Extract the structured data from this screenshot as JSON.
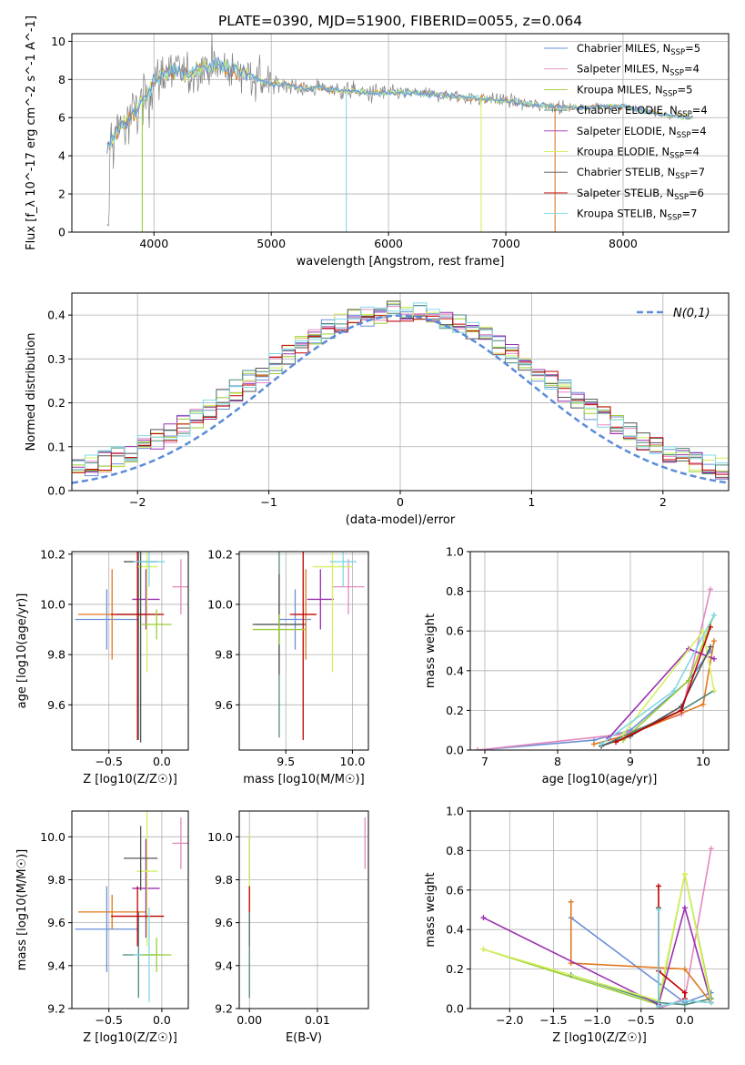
{
  "figure": {
    "title": "PLATE=0390, MJD=51900, FIBERID=0055, z=0.064"
  },
  "colors": {
    "Chabrier MILES": "#6a8fd8",
    "Salpeter MILES": "#e589c0",
    "Kroupa MILES": "#9acd32",
    "Chabrier ELODIE": "#4a8a7a",
    "Salpeter ELODIE": "#9b30b0",
    "Kroupa ELODIE": "#d4f060",
    "Chabrier STELIB": "#555555",
    "Salpeter STELIB": "#c00000",
    "Kroupa STELIB": "#80d8e8",
    "orange": "#e07820",
    "normal_curve": "#5b8bd9",
    "data_gray": "#808080"
  },
  "chart_data": [
    {
      "id": "spectrum",
      "type": "line",
      "xlabel": "wavelength [Angstrom, rest frame]",
      "ylabel": "Flux [f_λ 10^-17 erg cm^-2 s^-1 A^-1]",
      "xlim": [
        3300,
        8900
      ],
      "ylim": [
        0,
        10.4
      ],
      "xticks": [
        4000,
        5000,
        6000,
        7000,
        8000
      ],
      "yticks": [
        0,
        2,
        4,
        6,
        8,
        10
      ],
      "legend_position": "top-right",
      "legend": [
        {
          "name": "Chabrier MILES",
          "nssp": "5"
        },
        {
          "name": "Salpeter MILES",
          "nssp": "4"
        },
        {
          "name": "Kroupa MILES",
          "nssp": "5"
        },
        {
          "name": "Chabrier ELODIE",
          "nssp": "4"
        },
        {
          "name": "Salpeter ELODIE",
          "nssp": "4"
        },
        {
          "name": "Kroupa ELODIE",
          "nssp": "4"
        },
        {
          "name": "Chabrier STELIB",
          "nssp": "7"
        },
        {
          "name": "Salpeter STELIB",
          "nssp": "6"
        },
        {
          "name": "Kroupa STELIB",
          "nssp": "7"
        }
      ],
      "continuum": [
        [
          3600,
          4.5
        ],
        [
          3700,
          5.4
        ],
        [
          3800,
          6.0
        ],
        [
          3900,
          6.8
        ],
        [
          4000,
          7.9
        ],
        [
          4100,
          8.3
        ],
        [
          4200,
          8.5
        ],
        [
          4300,
          8.2
        ],
        [
          4400,
          8.6
        ],
        [
          4500,
          8.7
        ],
        [
          4600,
          8.6
        ],
        [
          4700,
          8.5
        ],
        [
          4800,
          8.3
        ],
        [
          4900,
          8.0
        ],
        [
          5000,
          7.7
        ],
        [
          5100,
          7.8
        ],
        [
          5200,
          7.6
        ],
        [
          5300,
          7.5
        ],
        [
          5400,
          7.6
        ],
        [
          5500,
          7.5
        ],
        [
          5600,
          7.4
        ],
        [
          5700,
          7.4
        ],
        [
          5800,
          7.3
        ],
        [
          5900,
          7.3
        ],
        [
          6000,
          7.3
        ],
        [
          6200,
          7.3
        ],
        [
          6400,
          7.2
        ],
        [
          6600,
          7.1
        ],
        [
          6800,
          7.0
        ],
        [
          7000,
          6.9
        ],
        [
          7200,
          6.7
        ],
        [
          7400,
          6.6
        ],
        [
          7600,
          6.5
        ],
        [
          7800,
          6.6
        ],
        [
          8000,
          6.6
        ],
        [
          8200,
          6.3
        ],
        [
          8400,
          6.1
        ],
        [
          8600,
          6.0
        ]
      ]
    },
    {
      "id": "residuals",
      "type": "line",
      "xlabel": "(data-model)/error",
      "ylabel": "Normed distribution",
      "xlim": [
        -2.5,
        2.5
      ],
      "ylim": [
        0,
        0.45
      ],
      "xticks": [
        -2,
        -1,
        0,
        1,
        2
      ],
      "yticks": [
        0.0,
        0.1,
        0.2,
        0.3,
        0.4
      ],
      "legend_position": "top-right",
      "legend_label": "N(0,1)",
      "bin_width": 0.1,
      "normal": {
        "mean": 0,
        "std": 1
      }
    },
    {
      "id": "age-vs-Z",
      "type": "scatter",
      "xlabel": "Z [log10(Z/Z☉)]",
      "ylabel": "age [log10(age/yr)]",
      "xlim": [
        -0.85,
        0.25
      ],
      "ylim": [
        9.42,
        10.21
      ],
      "xticks": [
        -0.5,
        0.0
      ],
      "yticks": [
        9.6,
        9.8,
        10.0,
        10.2
      ],
      "points": [
        {
          "model": "Chabrier MILES",
          "x": -0.52,
          "xerr": 0.3,
          "y": 9.94,
          "yerr": 0.12
        },
        {
          "model": "orange",
          "x": -0.47,
          "xerr": 0.32,
          "y": 9.96,
          "yerr": 0.18
        },
        {
          "model": "Salpeter MILES",
          "x": 0.18,
          "xerr": 0.08,
          "y": 10.07,
          "yerr": 0.11
        },
        {
          "model": "Chabrier ELODIE",
          "x": -0.22,
          "xerr": 0.2,
          "y": 9.96,
          "yerr": 0.5
        },
        {
          "model": "Salpeter ELODIE",
          "x": -0.15,
          "xerr": 0.13,
          "y": 10.02,
          "yerr": 0.12
        },
        {
          "model": "Kroupa ELODIE",
          "x": -0.14,
          "xerr": 0.1,
          "y": 10.15,
          "yerr": 0.42
        },
        {
          "model": "Chabrier STELIB",
          "x": -0.2,
          "xerr": 0.16,
          "y": 10.17,
          "yerr": 0.72
        },
        {
          "model": "Salpeter STELIB",
          "x": -0.23,
          "xerr": 0.25,
          "y": 9.96,
          "yerr": 0.5
        },
        {
          "model": "Kroupa STELIB",
          "x": -0.12,
          "xerr": 0.15,
          "y": 10.17,
          "yerr": 0.1
        },
        {
          "model": "Kroupa MILES",
          "x": -0.05,
          "xerr": 0.14,
          "y": 9.92,
          "yerr": 0.06
        }
      ]
    },
    {
      "id": "age-vs-mass",
      "type": "scatter",
      "xlabel": "mass [log10(M/M☉)]",
      "ylabel": "",
      "xlim": [
        9.15,
        10.12
      ],
      "ylim": [
        9.42,
        10.21
      ],
      "xticks": [
        9.5,
        10.0
      ],
      "yticks": [
        9.6,
        9.8,
        10.0,
        10.2
      ],
      "points": [
        {
          "model": "Chabrier MILES",
          "x": 9.57,
          "xerr": 0.12,
          "y": 9.94,
          "yerr": 0.12
        },
        {
          "model": "orange",
          "x": 9.65,
          "xerr": 0.08,
          "y": 9.96,
          "yerr": 0.18
        },
        {
          "model": "Salpeter MILES",
          "x": 9.97,
          "xerr": 0.12,
          "y": 10.07,
          "yerr": 0.11
        },
        {
          "model": "Chabrier ELODIE",
          "x": 9.45,
          "xerr": 0.18,
          "y": 9.92,
          "yerr": 0.45
        },
        {
          "model": "Salpeter ELODIE",
          "x": 9.76,
          "xerr": 0.1,
          "y": 10.02,
          "yerr": 0.12
        },
        {
          "model": "Kroupa ELODIE",
          "x": 9.85,
          "xerr": 0.15,
          "y": 10.15,
          "yerr": 0.42
        },
        {
          "model": "Chabrier STELIB",
          "x": 9.45,
          "xerr": 0.2,
          "y": 9.92,
          "yerr": 0.2
        },
        {
          "model": "Salpeter STELIB",
          "x": 9.63,
          "xerr": 0.1,
          "y": 9.96,
          "yerr": 0.5
        },
        {
          "model": "Kroupa STELIB",
          "x": 9.93,
          "xerr": 0.1,
          "y": 10.17,
          "yerr": 0.1
        },
        {
          "model": "Kroupa MILES",
          "x": 9.45,
          "xerr": 0.2,
          "y": 9.9,
          "yerr": 0.06
        }
      ]
    },
    {
      "id": "weight-vs-age",
      "type": "line",
      "xlabel": "age [log10(age/yr)]",
      "ylabel": "mass weight",
      "xlim": [
        6.8,
        10.35
      ],
      "ylim": [
        0,
        1.0
      ],
      "xticks": [
        7,
        8,
        9,
        10
      ],
      "yticks": [
        0.0,
        0.2,
        0.4,
        0.6,
        0.8,
        1.0
      ],
      "series": [
        {
          "model": "Chabrier MILES",
          "x": [
            6.9,
            8.5,
            9.0,
            9.8,
            10.1
          ],
          "y": [
            0.0,
            0.05,
            0.1,
            0.35,
            0.5
          ]
        },
        {
          "model": "Salpeter MILES",
          "x": [
            6.9,
            8.9,
            9.7,
            10.1
          ],
          "y": [
            0.0,
            0.08,
            0.18,
            0.81
          ]
        },
        {
          "model": "Kroupa MILES",
          "x": [
            8.9,
            9.8,
            10.15
          ],
          "y": [
            0.05,
            0.35,
            0.68
          ]
        },
        {
          "model": "orange",
          "x": [
            8.5,
            9.0,
            10.0,
            10.15
          ],
          "y": [
            0.03,
            0.08,
            0.23,
            0.55
          ]
        },
        {
          "model": "Chabrier ELODIE",
          "x": [
            8.6,
            9.7,
            10.15
          ],
          "y": [
            0.02,
            0.2,
            0.3
          ]
        },
        {
          "model": "Salpeter ELODIE",
          "x": [
            8.7,
            9.8,
            10.15
          ],
          "y": [
            0.06,
            0.51,
            0.46
          ]
        },
        {
          "model": "Kroupa ELODIE",
          "x": [
            8.9,
            10.0,
            10.15
          ],
          "y": [
            0.08,
            0.6,
            0.3
          ]
        },
        {
          "model": "Chabrier STELIB",
          "x": [
            8.6,
            9.0,
            9.7,
            10.1
          ],
          "y": [
            0.02,
            0.07,
            0.22,
            0.52
          ]
        },
        {
          "model": "Salpeter STELIB",
          "x": [
            8.8,
            9.7,
            10.1
          ],
          "y": [
            0.04,
            0.2,
            0.62
          ]
        },
        {
          "model": "Kroupa STELIB",
          "x": [
            8.6,
            9.6,
            10.15
          ],
          "y": [
            0.03,
            0.3,
            0.68
          ]
        }
      ]
    },
    {
      "id": "mass-vs-Z",
      "type": "scatter",
      "xlabel": "Z [log10(Z/Z☉)]",
      "ylabel": "mass [log10(M/M☉)]",
      "xlim": [
        -0.85,
        0.25
      ],
      "ylim": [
        9.2,
        10.12
      ],
      "xticks": [
        -0.5,
        0.0
      ],
      "yticks": [
        9.2,
        9.4,
        9.6,
        9.8,
        10.0
      ],
      "points": [
        {
          "model": "Chabrier MILES",
          "x": -0.52,
          "xerr": 0.3,
          "y": 9.57,
          "yerr": 0.2
        },
        {
          "model": "orange",
          "x": -0.47,
          "xerr": 0.32,
          "y": 9.65,
          "yerr": 0.08
        },
        {
          "model": "Salpeter MILES",
          "x": 0.18,
          "xerr": 0.08,
          "y": 9.97,
          "yerr": 0.12
        },
        {
          "model": "Chabrier ELODIE",
          "x": -0.22,
          "xerr": 0.15,
          "y": 9.45,
          "yerr": 0.2
        },
        {
          "model": "Salpeter ELODIE",
          "x": -0.15,
          "xerr": 0.13,
          "y": 9.76,
          "yerr": 0.23
        },
        {
          "model": "Kroupa ELODIE",
          "x": -0.14,
          "xerr": 0.1,
          "y": 9.84,
          "yerr": 0.35
        },
        {
          "model": "Chabrier STELIB",
          "x": -0.2,
          "xerr": 0.16,
          "y": 9.9,
          "yerr": 0.15
        },
        {
          "model": "Salpeter STELIB",
          "x": -0.23,
          "xerr": 0.25,
          "y": 9.63,
          "yerr": 0.14
        },
        {
          "model": "Kroupa STELIB",
          "x": -0.12,
          "xerr": 0.15,
          "y": 9.45,
          "yerr": 0.22
        },
        {
          "model": "Kroupa MILES",
          "x": -0.05,
          "xerr": 0.14,
          "y": 9.45,
          "yerr": 0.08
        }
      ]
    },
    {
      "id": "mass-vs-ebv",
      "type": "scatter",
      "xlabel": "E(B-V)",
      "ylabel": "",
      "xlim": [
        -0.0015,
        0.0175
      ],
      "ylim": [
        9.2,
        10.12
      ],
      "xticks": [
        0.0,
        0.01
      ],
      "xticklabels": [
        "0.00",
        "0.01"
      ],
      "yticks": [
        9.2,
        9.4,
        9.6,
        9.8,
        10.0
      ],
      "points": [
        {
          "model": "Salpeter ELODIE",
          "x": 0.0,
          "y": 9.9,
          "yerr": 0.1
        },
        {
          "model": "Kroupa ELODIE",
          "x": 0.0,
          "y": 9.83,
          "yerr": 0.18
        },
        {
          "model": "Salpeter STELIB",
          "x": 0.0,
          "y": 9.63,
          "yerr": 0.14
        },
        {
          "model": "Chabrier ELODIE",
          "x": 0.0,
          "y": 9.45,
          "yerr": 0.2
        },
        {
          "model": "Salpeter MILES",
          "x": 0.017,
          "y": 9.97,
          "yerr": 0.12
        }
      ]
    },
    {
      "id": "weight-vs-Z",
      "type": "line",
      "xlabel": "Z [log10(Z/Z☉)]",
      "ylabel": "mass weight",
      "xlim": [
        -2.45,
        0.5
      ],
      "ylim": [
        0,
        1.0
      ],
      "xticks": [
        -2.0,
        -1.5,
        -1.0,
        -0.5,
        0.0
      ],
      "yticks": [
        0.0,
        0.2,
        0.4,
        0.6,
        0.8,
        1.0
      ],
      "series": [
        {
          "model": "Chabrier MILES",
          "x": [
            -1.3,
            0.0,
            0.3
          ],
          "y": [
            0.46,
            0.03,
            0.08
          ]
        },
        {
          "model": "Salpeter MILES",
          "x": [
            -0.3,
            0.0,
            0.3
          ],
          "y": [
            0.0,
            0.05,
            0.81
          ]
        },
        {
          "model": "Kroupa MILES",
          "x": [
            -2.3,
            -0.3,
            0.0,
            0.3
          ],
          "y": [
            0.3,
            0.02,
            0.68,
            0.05
          ]
        },
        {
          "model": "orange",
          "x": [
            -1.3,
            -1.3,
            0.0,
            0.3
          ],
          "y": [
            0.54,
            0.23,
            0.2,
            0.03
          ]
        },
        {
          "model": "Chabrier ELODIE",
          "x": [
            -1.3,
            -0.3,
            0.0,
            0.3
          ],
          "y": [
            0.17,
            0.03,
            0.02,
            0.05
          ]
        },
        {
          "model": "Salpeter ELODIE",
          "x": [
            -2.3,
            -0.3,
            0.0,
            0.3
          ],
          "y": [
            0.46,
            0.02,
            0.51,
            0.03
          ]
        },
        {
          "model": "Kroupa ELODIE",
          "x": [
            -2.3,
            -0.3,
            0.0,
            0.3
          ],
          "y": [
            0.3,
            0.04,
            0.68,
            0.03
          ]
        },
        {
          "model": "Chabrier STELIB",
          "x": [
            -0.3,
            -0.3,
            0.0,
            0.3
          ],
          "y": [
            0.51,
            0.01,
            0.04,
            0.03
          ]
        },
        {
          "model": "Salpeter STELIB",
          "x": [
            -0.3,
            -0.3,
            0.0,
            0.0
          ],
          "y": [
            0.62,
            0.19,
            0.08,
            0.05
          ]
        },
        {
          "model": "Kroupa STELIB",
          "x": [
            -0.3,
            -0.3,
            0.0,
            0.3
          ],
          "y": [
            0.5,
            0.01,
            0.04,
            0.03
          ]
        }
      ]
    }
  ]
}
